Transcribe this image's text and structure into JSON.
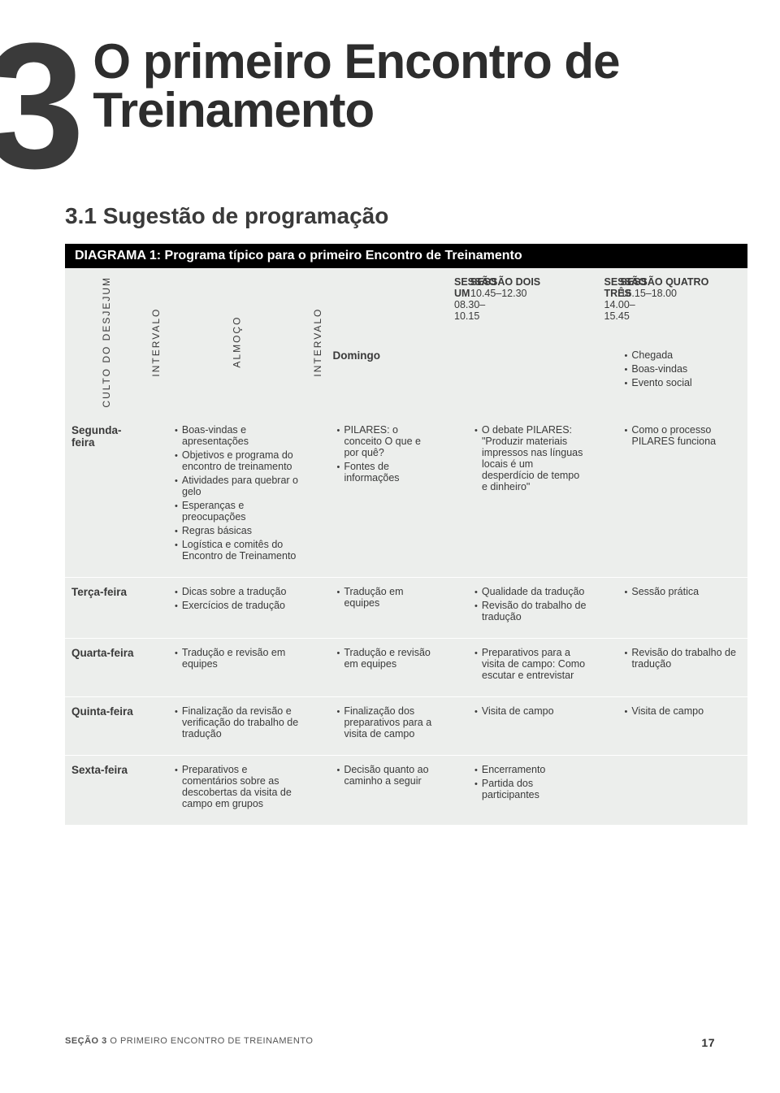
{
  "chapter_number": "3",
  "title": "O primeiro Encontro de Treinamento",
  "section_heading": "3.1 Sugestão de programação",
  "diagram_title": "DIAGRAMA 1: Programa típico para o primeiro Encontro de Treinamento",
  "vertical_labels": {
    "culto": "CULTO DO DESJEJUM",
    "intervalo1": "INTERVALO",
    "almoco": "ALMOÇO",
    "intervalo2": "INTERVALO"
  },
  "sessions": {
    "s1": {
      "name": "SESSÃO UM",
      "time": "08.30–10.15"
    },
    "s2": {
      "name": "SESSÃO DOIS",
      "time": "10.45–12.30"
    },
    "s3": {
      "name": "SESSÃO TRÊS",
      "time": "14.00–15.45"
    },
    "s4": {
      "name": "SESSÃO QUATRO",
      "time": "16.15–18.00"
    }
  },
  "days": {
    "sun": "Domingo",
    "mon": "Segunda-feira",
    "tue": "Terça-feira",
    "wed": "Quarta-feira",
    "thu": "Quinta-feira",
    "fri": "Sexta-feira"
  },
  "cells": {
    "sun_s4": [
      "Chegada",
      "Boas-vindas",
      "Evento social"
    ],
    "mon_s1": [
      "Boas-vindas e apresentações",
      "Objetivos e programa do encontro de treinamento",
      "Atividades para quebrar o gelo",
      "Esperanças e preocupações",
      "Regras básicas",
      "Logística e comitês do Encontro de Treinamento"
    ],
    "mon_s2": [
      "PILARES: o conceito O que e por quê?",
      "Fontes de informações"
    ],
    "mon_s3": [
      "O debate PILARES: \"Produzir materiais impressos nas línguas locais é um desperdício de tempo e dinheiro\""
    ],
    "mon_s4": [
      "Como o processo PILARES funciona"
    ],
    "tue_s1": [
      "Dicas sobre a tradução",
      "Exercícios de tradução"
    ],
    "tue_s2": [
      "Tradução em equipes"
    ],
    "tue_s3": [
      "Qualidade da tradução",
      "Revisão do trabalho de tradução"
    ],
    "tue_s4": [
      "Sessão prática"
    ],
    "wed_s1": [
      "Tradução e revisão em equipes"
    ],
    "wed_s2": [
      "Tradução e revisão em equipes"
    ],
    "wed_s3": [
      "Preparativos para a visita de campo: Como escutar e entrevistar"
    ],
    "wed_s4": [
      "Revisão do trabalho de tradução"
    ],
    "thu_s1": [
      "Finalização da revisão e verificação do trabalho de tradução"
    ],
    "thu_s2": [
      "Finalização dos preparativos para a visita de campo"
    ],
    "thu_s3": [
      "Visita de campo"
    ],
    "thu_s4": [
      "Visita de campo"
    ],
    "fri_s1": [
      "Preparativos e comentários sobre as descobertas da visita de campo em grupos"
    ],
    "fri_s2": [
      "Decisão quanto ao caminho a seguir"
    ],
    "fri_s3": [
      "Encerramento",
      "Partida dos participantes"
    ]
  },
  "footer": {
    "section_label": "SEÇÃO 3",
    "section_title": "O PRIMEIRO ENCONTRO DE TREINAMENTO",
    "page": "17"
  },
  "colors": {
    "page_bg": "#ffffff",
    "table_bg": "#eceeec",
    "title_bg": "#000000",
    "title_fg": "#ffffff",
    "text": "#3a3a3a",
    "row_border": "#ffffff"
  }
}
